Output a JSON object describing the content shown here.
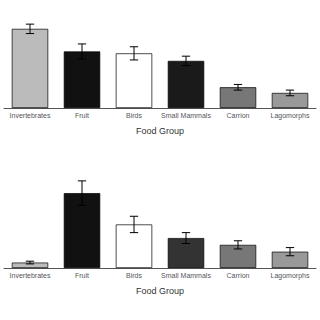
{
  "chart_data": [
    {
      "type": "bar",
      "categories": [
        "Invertebrates",
        "Fruit",
        "Birds",
        "Small Mammals",
        "Carrion",
        "Lagomorphs"
      ],
      "values": [
        42,
        30,
        29,
        25,
        11,
        8
      ],
      "errors": [
        2.5,
        4,
        3.5,
        2.5,
        1.5,
        1.5
      ],
      "colors": [
        "#bbbbbb",
        "#111111",
        "#ffffff",
        "#1a1a1a",
        "#777777",
        "#999999"
      ],
      "xlabel": "Food Group",
      "ylim": [
        0,
        52
      ],
      "tick_labels": "x",
      "grid": false
    },
    {
      "type": "bar",
      "categories": [
        "Invertebrates",
        "Fruit",
        "Birds",
        "Small Mammals",
        "Carrion",
        "Lagomorphs"
      ],
      "values": [
        4,
        55,
        32,
        22,
        17,
        12
      ],
      "errors": [
        1,
        9,
        6,
        4,
        3,
        3
      ],
      "colors": [
        "#bbbbbb",
        "#111111",
        "#ffffff",
        "#333333",
        "#777777",
        "#999999"
      ],
      "xlabel": "Food Group",
      "ylim": [
        0,
        72
      ],
      "tick_labels": "x",
      "grid": false
    }
  ]
}
